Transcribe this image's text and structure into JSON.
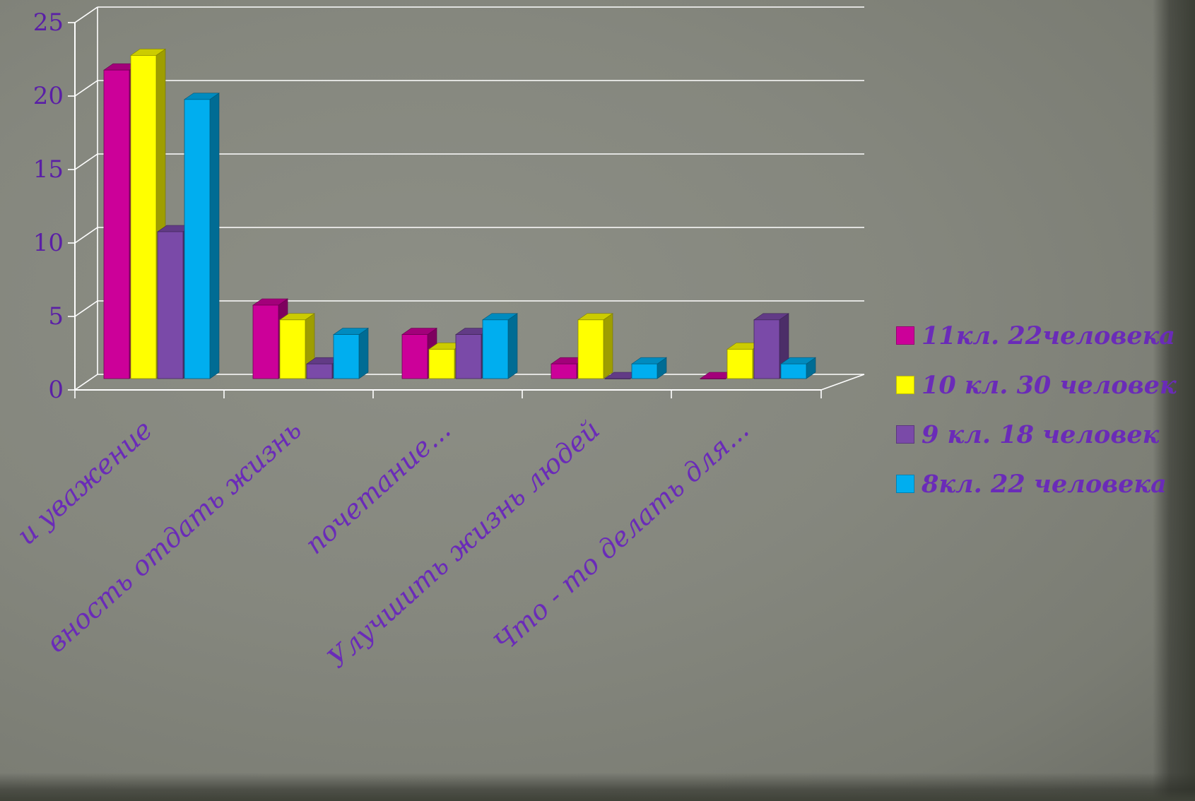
{
  "chart_data": {
    "type": "bar",
    "categories": [
      "и уважение",
      "вность отдать жизнь",
      "почетание...",
      "Улучшить жизнь людей",
      "Что - то делать для..."
    ],
    "series": [
      {
        "name": "11кл. 22человека",
        "color": "#cc0099",
        "values": [
          21,
          5,
          3,
          1,
          0
        ]
      },
      {
        "name": "10 кл. 30 человек",
        "color": "#ffff00",
        "values": [
          22,
          4,
          2,
          4,
          2
        ]
      },
      {
        "name": "9 кл. 18 человек",
        "color": "#7a4aa8",
        "values": [
          10,
          1,
          3,
          0,
          4
        ]
      },
      {
        "name": "8кл. 22 человека",
        "color": "#00aeef",
        "values": [
          19,
          3,
          4,
          1,
          1
        ]
      }
    ],
    "yticks": [
      "0",
      "5",
      "10",
      "15",
      "20",
      "25"
    ],
    "ylim": [
      0,
      25
    ],
    "grid": true,
    "legend": "right",
    "style": "3d-clustered-column"
  }
}
